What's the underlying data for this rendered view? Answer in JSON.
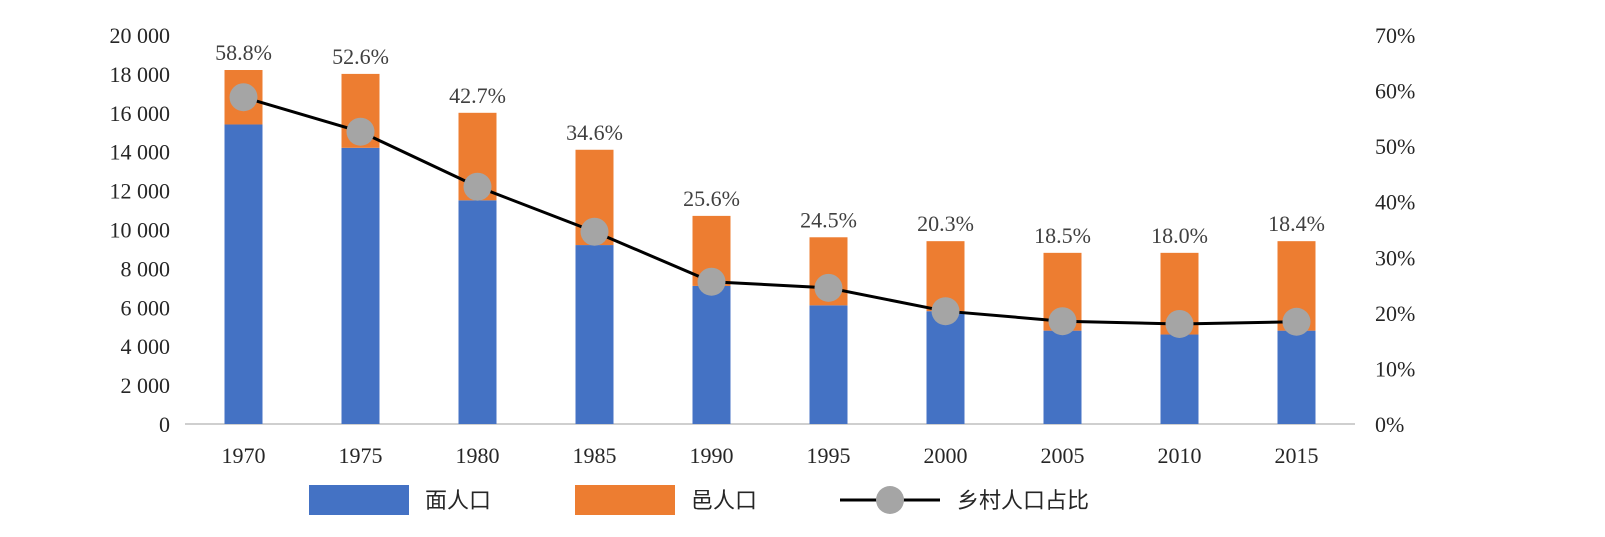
{
  "chart_data": {
    "type": "bar",
    "stacked": true,
    "categories": [
      "1970",
      "1975",
      "1980",
      "1985",
      "1990",
      "1995",
      "2000",
      "2005",
      "2010",
      "2015"
    ],
    "series": [
      {
        "name": "面人口",
        "type": "bar",
        "axis": "left",
        "color": "#4472C4",
        "values": [
          15400,
          14200,
          11500,
          9200,
          7100,
          6100,
          5800,
          4800,
          4600,
          4800
        ]
      },
      {
        "name": "邑人口",
        "type": "bar",
        "axis": "left",
        "color": "#ED7D31",
        "values": [
          2800,
          3800,
          4500,
          4900,
          3600,
          3500,
          3600,
          4000,
          4200,
          4600
        ]
      },
      {
        "name": "乡村人口占比",
        "type": "line",
        "axis": "right",
        "color": "#000000",
        "marker_color": "#A5A5A5",
        "values": [
          58.8,
          52.6,
          42.7,
          34.6,
          25.6,
          24.5,
          20.3,
          18.5,
          18.0,
          18.4
        ],
        "labels": [
          "58.8%",
          "52.6%",
          "42.7%",
          "34.6%",
          "25.6%",
          "24.5%",
          "20.3%",
          "18.5%",
          "18.0%",
          "18.4%"
        ]
      }
    ],
    "y_left": {
      "ylim": [
        0,
        20000
      ],
      "ticks": [
        0,
        2000,
        4000,
        6000,
        8000,
        10000,
        12000,
        14000,
        16000,
        18000,
        20000
      ],
      "tick_labels": [
        "0",
        "2 000",
        "4 000",
        "6 000",
        "8 000",
        "10 000",
        "12 000",
        "14 000",
        "16 000",
        "18 000",
        "20 000"
      ]
    },
    "y_right": {
      "ylim": [
        0,
        70
      ],
      "ticks": [
        0,
        10,
        20,
        30,
        40,
        50,
        60,
        70
      ],
      "tick_labels": [
        "0%",
        "10%",
        "20%",
        "30%",
        "40%",
        "50%",
        "60%",
        "70%"
      ]
    },
    "grid": false,
    "legend": "bottom"
  }
}
